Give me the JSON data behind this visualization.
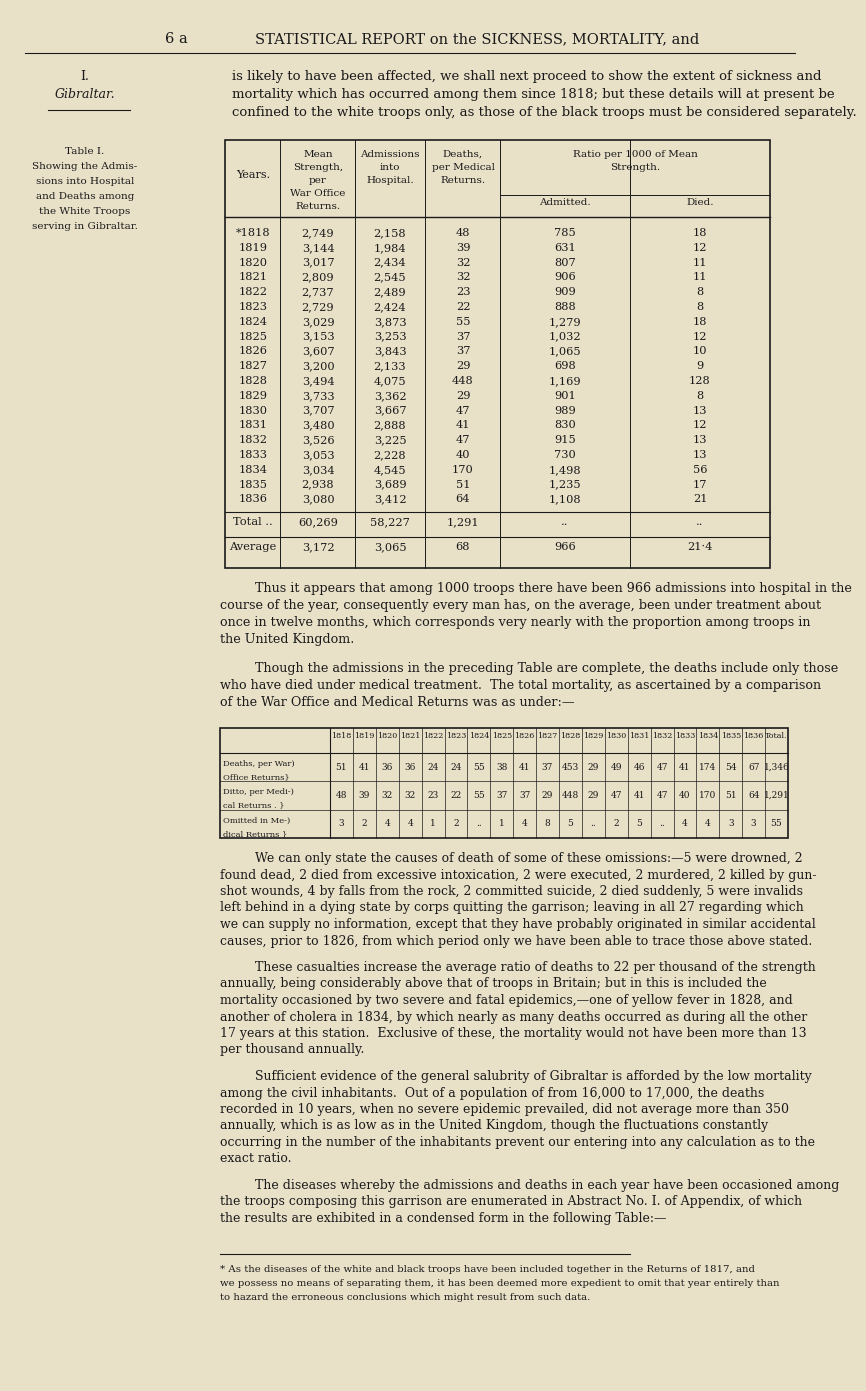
{
  "bg_color": "#e9e0c8",
  "page_header_left": "6 a",
  "page_header_right": "STATISTICAL REPORT on the SICKNESS, MORTALITY, and",
  "intro_text": "is likely to have been affected, we shall next proceed to show the extent of sickness and\nmortality which has occurred among them since 1818; but these details will at present be\nconfined to the white troops only, as those of the black troops must be considered separately.",
  "table1_years": [
    "*1818",
    "1819",
    "1820",
    "1821",
    "1822",
    "1823",
    "1824",
    "1825",
    "1826",
    "1827",
    "1828",
    "1829",
    "1830",
    "1831",
    "1832",
    "1833",
    "1834",
    "1835",
    "1836"
  ],
  "table1_mean_strength": [
    "2,749",
    "3,144",
    "3,017",
    "2,809",
    "2,737",
    "2,729",
    "3,029",
    "3,153",
    "3,607",
    "3,200",
    "3,494",
    "3,733",
    "3,707",
    "3,480",
    "3,526",
    "3,053",
    "3,034",
    "2,938",
    "3,080"
  ],
  "table1_admissions": [
    "2,158",
    "1,984",
    "2,434",
    "2,545",
    "2,489",
    "2,424",
    "3,873",
    "3,253",
    "3,843",
    "2,133",
    "4,075",
    "3,362",
    "3,667",
    "2,888",
    "3,225",
    "2,228",
    "4,545",
    "3,689",
    "3,412"
  ],
  "table1_deaths": [
    "48",
    "39",
    "32",
    "32",
    "23",
    "22",
    "55",
    "37",
    "37",
    "29",
    "448",
    "29",
    "47",
    "41",
    "47",
    "40",
    "170",
    "51",
    "64"
  ],
  "table1_admitted_ratio": [
    "785",
    "631",
    "807",
    "906",
    "909",
    "888",
    "1,279",
    "1,032",
    "1,065",
    "698",
    "1,169",
    "901",
    "989",
    "830",
    "915",
    "730",
    "1,498",
    "1,235",
    "1,108"
  ],
  "table1_died_ratio": [
    "18",
    "12",
    "11",
    "11",
    "8",
    "8",
    "18",
    "12",
    "10",
    "9",
    "128",
    "8",
    "13",
    "12",
    "13",
    "13",
    "56",
    "17",
    "21"
  ],
  "table1_total_strength": "60,269",
  "table1_total_admissions": "58,227",
  "table1_total_deaths": "1,291",
  "table1_avg_strength": "3,172",
  "table1_avg_admissions": "3,065",
  "table1_avg_deaths": "68",
  "table1_avg_admitted": "966",
  "table1_avg_died": "21·4",
  "para1": "Thus it appears that among 1000 troops there have been 966 admissions into hospital in the\ncourse of the year, consequently every man has, on the average, been under treatment about\nonce in twelve months, which corresponds very nearly with the proportion among troops in\nthe United Kingdom.",
  "para2": "Though the admissions in the preceding Table are complete, the deaths include only those\nwho have died under medical treatment.  The total mortality, as ascertained by a comparison\nof the War Office and Medical Returns was as under:—",
  "table2_years": [
    "1818",
    "1819",
    "1820",
    "1821",
    "1822",
    "1823",
    "1824",
    "1825",
    "1826",
    "1827",
    "1828",
    "1829",
    "1830",
    "1831",
    "1832",
    "1833",
    "1834",
    "1835",
    "1836",
    "Total."
  ],
  "table2_war_office": [
    "51",
    "41",
    "36",
    "36",
    "24",
    "24",
    "55",
    "38",
    "41",
    "37",
    "453",
    "29",
    "49",
    "46",
    "47",
    "41",
    "174",
    "54",
    "67",
    "1,346"
  ],
  "table2_medical": [
    "48",
    "39",
    "32",
    "32",
    "23",
    "22",
    "55",
    "37",
    "37",
    "29",
    "448",
    "29",
    "47",
    "41",
    "47",
    "40",
    "170",
    "51",
    "64",
    "1,291"
  ],
  "table2_omitted": [
    "3",
    "2",
    "4",
    "4",
    "1",
    "2",
    "..",
    "1",
    "4",
    "8",
    "5",
    "..",
    "2",
    "5",
    "..",
    "4",
    "4",
    "3",
    "3",
    "55"
  ],
  "para3": "We can only state the causes of death of some of these omissions:—5 were drowned, 2\nfound dead, 2 died from excessive intoxication, 2 were executed, 2 murdered, 2 killed by gun-\nshot wounds, 4 by falls from the rock, 2 committed suicide, 2 died suddenly, 5 were invalids\nleft behind in a dying state by corps quitting the garrison; leaving in all 27 regarding which\nwe can supply no information, except that they have probably originated in similar accidental\ncauses, prior to 1826, from which period only we have been able to trace those above stated.",
  "para4": "These casualties increase the average ratio of deaths to 22 per thousand of the strength\nannually, being considerably above that of troops in Britain; but in this is included the\nmortality occasioned by two severe and fatal epidemics,—one of yellow fever in 1828, and\nanother of cholera in 1834, by which nearly as many deaths occurred as during all the other\n17 years at this station.  Exclusive of these, the mortality would not have been more than 13\nper thousand annually.",
  "para5": "Sufficient evidence of the general salubrity of Gibraltar is afforded by the low mortality\namong the civil inhabitants.  Out of a population of from 16,000 to 17,000, the deaths\nrecorded in 10 years, when no severe epidemic prevailed, did not average more than 350\nannually, which is as low as in the United Kingdom, though the fluctuations constantly\noccurring in the number of the inhabitants prevent our entering into any calculation as to the\nexact ratio.",
  "para6": "The diseases whereby the admissions and deaths in each year have been occasioned among\nthe troops composing this garrison are enumerated in Abstract No. I. of Appendix, of which\nthe results are exhibited in a condensed form in the following Table:—",
  "footnote": "* As the diseases of the white and black troops have been included together in the Returns of 1817, and\nwe possess no means of separating them, it has been deemed more expedient to omit that year entirely than\nto hazard the erroneous conclusions which might result from such data."
}
